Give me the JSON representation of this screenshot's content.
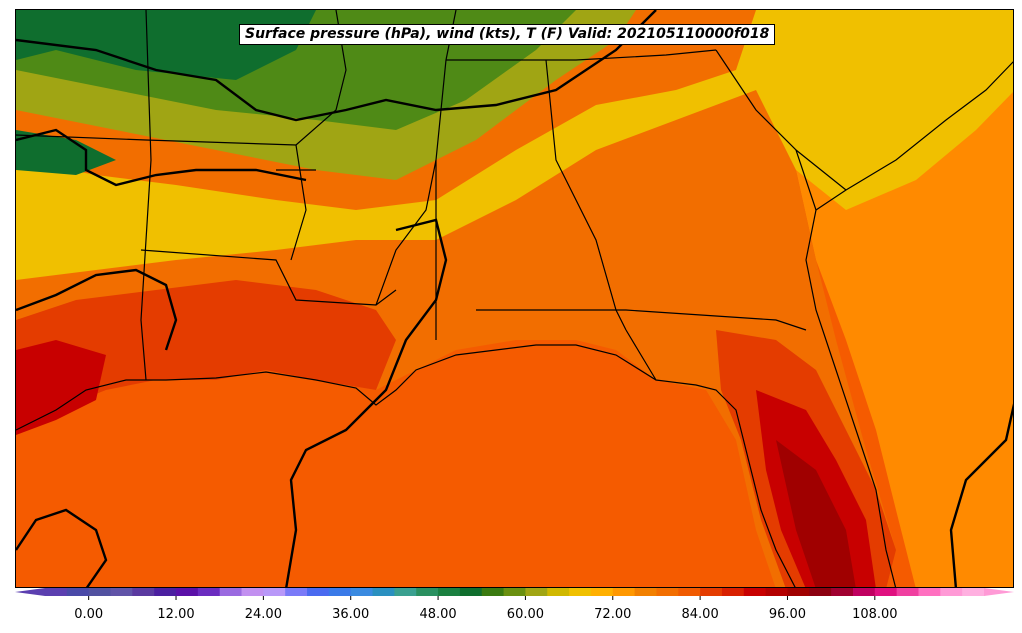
{
  "map": {
    "title": "Surface pressure (hPa), wind (kts), T (F) Valid: 202105110000f018"
  },
  "colorbar": {
    "tick_labels": [
      "0.00",
      "12.00",
      "24.00",
      "36.00",
      "48.00",
      "60.00",
      "72.00",
      "84.00",
      "96.00",
      "108.00"
    ],
    "tick_values": [
      0,
      12,
      24,
      36,
      48,
      60,
      72,
      84,
      96,
      108
    ],
    "min": -6,
    "max": 123,
    "step": 3,
    "extend": "both"
  },
  "colors": {
    "land_green_dark": "#0f6e2e",
    "land_olive": "#4f8a16",
    "land_yellow_green": "#a0a514",
    "land_yellow": "#f0c000",
    "warm_orange": "#ff9800",
    "orange": "#f26e00",
    "red_orange": "#e43c00",
    "dark_red": "#c80000",
    "very_dark_red": "#a00000",
    "ocean": "#f55b00"
  }
}
